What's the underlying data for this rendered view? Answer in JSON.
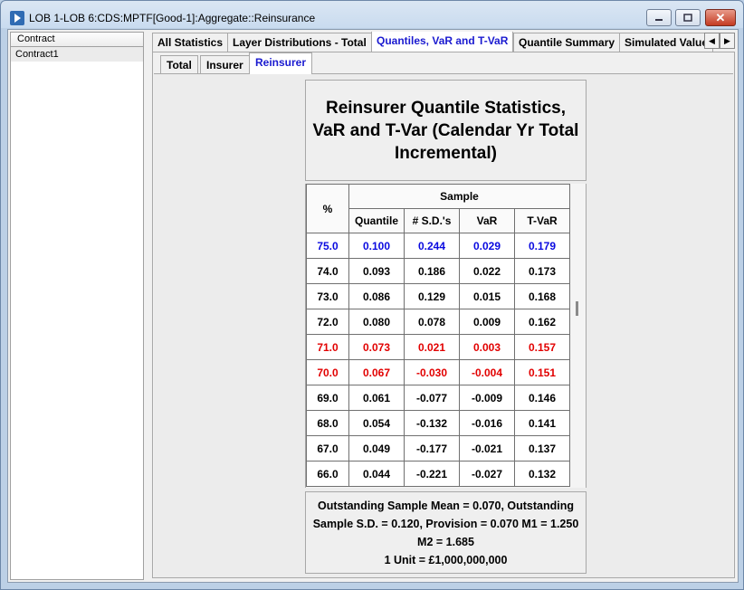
{
  "window": {
    "title": "LOB 1-LOB 6:CDS:MPTF[Good-1]:Aggregate::Reinsurance",
    "close_glyph": "✕"
  },
  "tree": {
    "header": "Contract",
    "items": [
      "Contract1"
    ]
  },
  "tabs": [
    {
      "label": "All Statistics",
      "active": false
    },
    {
      "label": "Layer Distributions - Total",
      "active": false
    },
    {
      "label": "Quantiles, VaR and T-VaR",
      "active": true
    },
    {
      "label": "Quantile Summary",
      "active": false
    },
    {
      "label": "Simulated Values",
      "active": false
    }
  ],
  "tab_scroll": {
    "left_glyph": "◀",
    "right_glyph": "▶"
  },
  "subtabs": [
    {
      "label": "Total",
      "active": false
    },
    {
      "label": "Insurer",
      "active": false
    },
    {
      "label": "Reinsurer",
      "active": true
    }
  ],
  "report": {
    "title": "Reinsurer Quantile Statistics, VaR and T-Var (Calendar Yr Total Incremental)",
    "headers": {
      "percent": "%",
      "group": "Sample",
      "columns": [
        "Quantile",
        "# S.D.'s",
        "VaR",
        "T-VaR"
      ]
    },
    "rows": [
      {
        "pct": "75.0",
        "quantile": "0.100",
        "sds": "0.244",
        "var": "0.029",
        "tvar": "0.179",
        "color": "blue"
      },
      {
        "pct": "74.0",
        "quantile": "0.093",
        "sds": "0.186",
        "var": "0.022",
        "tvar": "0.173",
        "color": "black"
      },
      {
        "pct": "73.0",
        "quantile": "0.086",
        "sds": "0.129",
        "var": "0.015",
        "tvar": "0.168",
        "color": "black"
      },
      {
        "pct": "72.0",
        "quantile": "0.080",
        "sds": "0.078",
        "var": "0.009",
        "tvar": "0.162",
        "color": "black"
      },
      {
        "pct": "71.0",
        "quantile": "0.073",
        "sds": "0.021",
        "var": "0.003",
        "tvar": "0.157",
        "color": "red"
      },
      {
        "pct": "70.0",
        "quantile": "0.067",
        "sds": "-0.030",
        "var": "-0.004",
        "tvar": "0.151",
        "color": "red"
      },
      {
        "pct": "69.0",
        "quantile": "0.061",
        "sds": "-0.077",
        "var": "-0.009",
        "tvar": "0.146",
        "color": "black"
      },
      {
        "pct": "68.0",
        "quantile": "0.054",
        "sds": "-0.132",
        "var": "-0.016",
        "tvar": "0.141",
        "color": "black"
      },
      {
        "pct": "67.0",
        "quantile": "0.049",
        "sds": "-0.177",
        "var": "-0.021",
        "tvar": "0.137",
        "color": "black"
      },
      {
        "pct": "66.0",
        "quantile": "0.044",
        "sds": "-0.221",
        "var": "-0.027",
        "tvar": "0.132",
        "color": "black"
      }
    ],
    "footer_lines": [
      "Outstanding Sample Mean = 0.070, Outstanding",
      "Sample S.D. = 0.120, Provision = 0.070 M1 = 1.250",
      "M2 = 1.685",
      "1 Unit = £1,000,000,000"
    ]
  }
}
